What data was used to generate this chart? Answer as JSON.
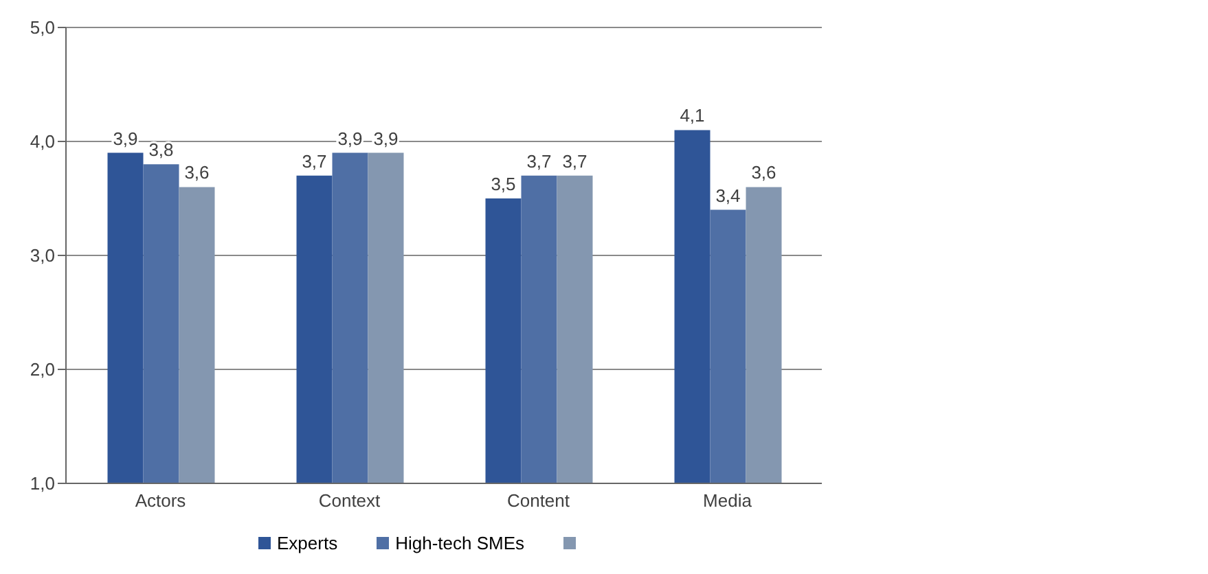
{
  "chart_data": {
    "type": "bar",
    "categories": [
      "Actors",
      "Context",
      "Content",
      "Media"
    ],
    "series": [
      {
        "name": "Experts",
        "color": "#2f5597",
        "values": [
          3.9,
          3.7,
          3.5,
          4.1
        ],
        "value_labels": [
          "3,9",
          "3,7",
          "3,5",
          "4,1"
        ]
      },
      {
        "name": "High-tech SMEs",
        "color": "#4f6fa5",
        "values": [
          3.8,
          3.9,
          3.7,
          3.4
        ],
        "value_labels": [
          "3,8",
          "3,9",
          "3,7",
          "3,4"
        ]
      },
      {
        "color": "#8497b0",
        "values": [
          3.6,
          3.9,
          3.7,
          3.6
        ],
        "value_labels": [
          "3,6",
          "3,9",
          "3,7",
          "3,6"
        ]
      }
    ],
    "ylim": [
      1,
      5
    ],
    "yticks": [
      {
        "value": 1,
        "label": "1,0"
      },
      {
        "value": 2,
        "label": "2,0"
      },
      {
        "value": 3,
        "label": "3,0"
      },
      {
        "value": 4,
        "label": "4,0"
      },
      {
        "value": 5,
        "label": "5,0"
      }
    ],
    "grid": "y",
    "legend": "bottom"
  }
}
